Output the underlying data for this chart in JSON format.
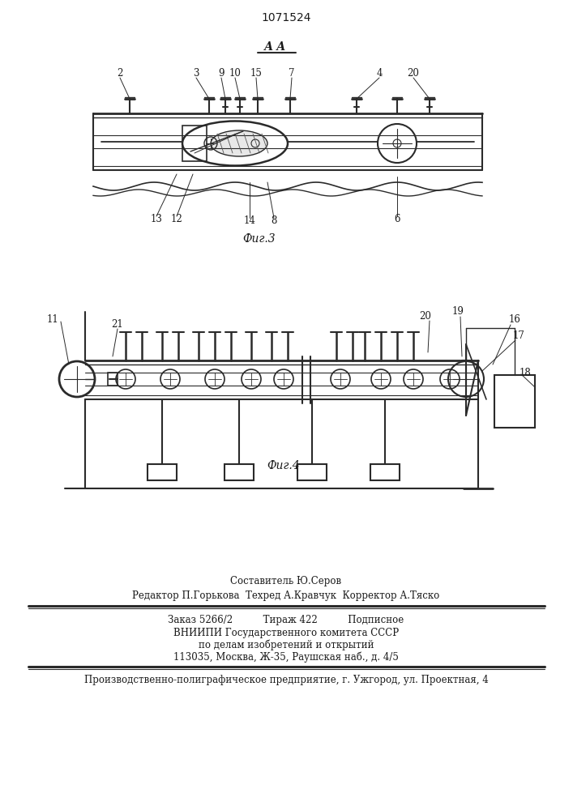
{
  "patent_number": "1071524",
  "background_color": "#ffffff",
  "fig3_label": "Фиг.3",
  "fig4_label": "Фиг.4",
  "section_label": "А А",
  "footer_line1": "Составитель Ю.Серов",
  "footer_line2": "Редактор П.Горькова  Техред А.Кравчук  Корректор А.Тяско",
  "footer_line3": "Заказ 5266/2          Тираж 422          Подписное",
  "footer_line4": "ВНИИПИ Государственного комитета СССР",
  "footer_line5": "по делам изобретений и открытий",
  "footer_line6": "113035, Москва, Ж-35, Раушская наб., д. 4/5",
  "footer_line7": "Производственно-полиграфическое предприятие, г. Ужгород, ул. Проектная, 4",
  "text_color": "#1a1a1a",
  "line_color": "#2a2a2a"
}
